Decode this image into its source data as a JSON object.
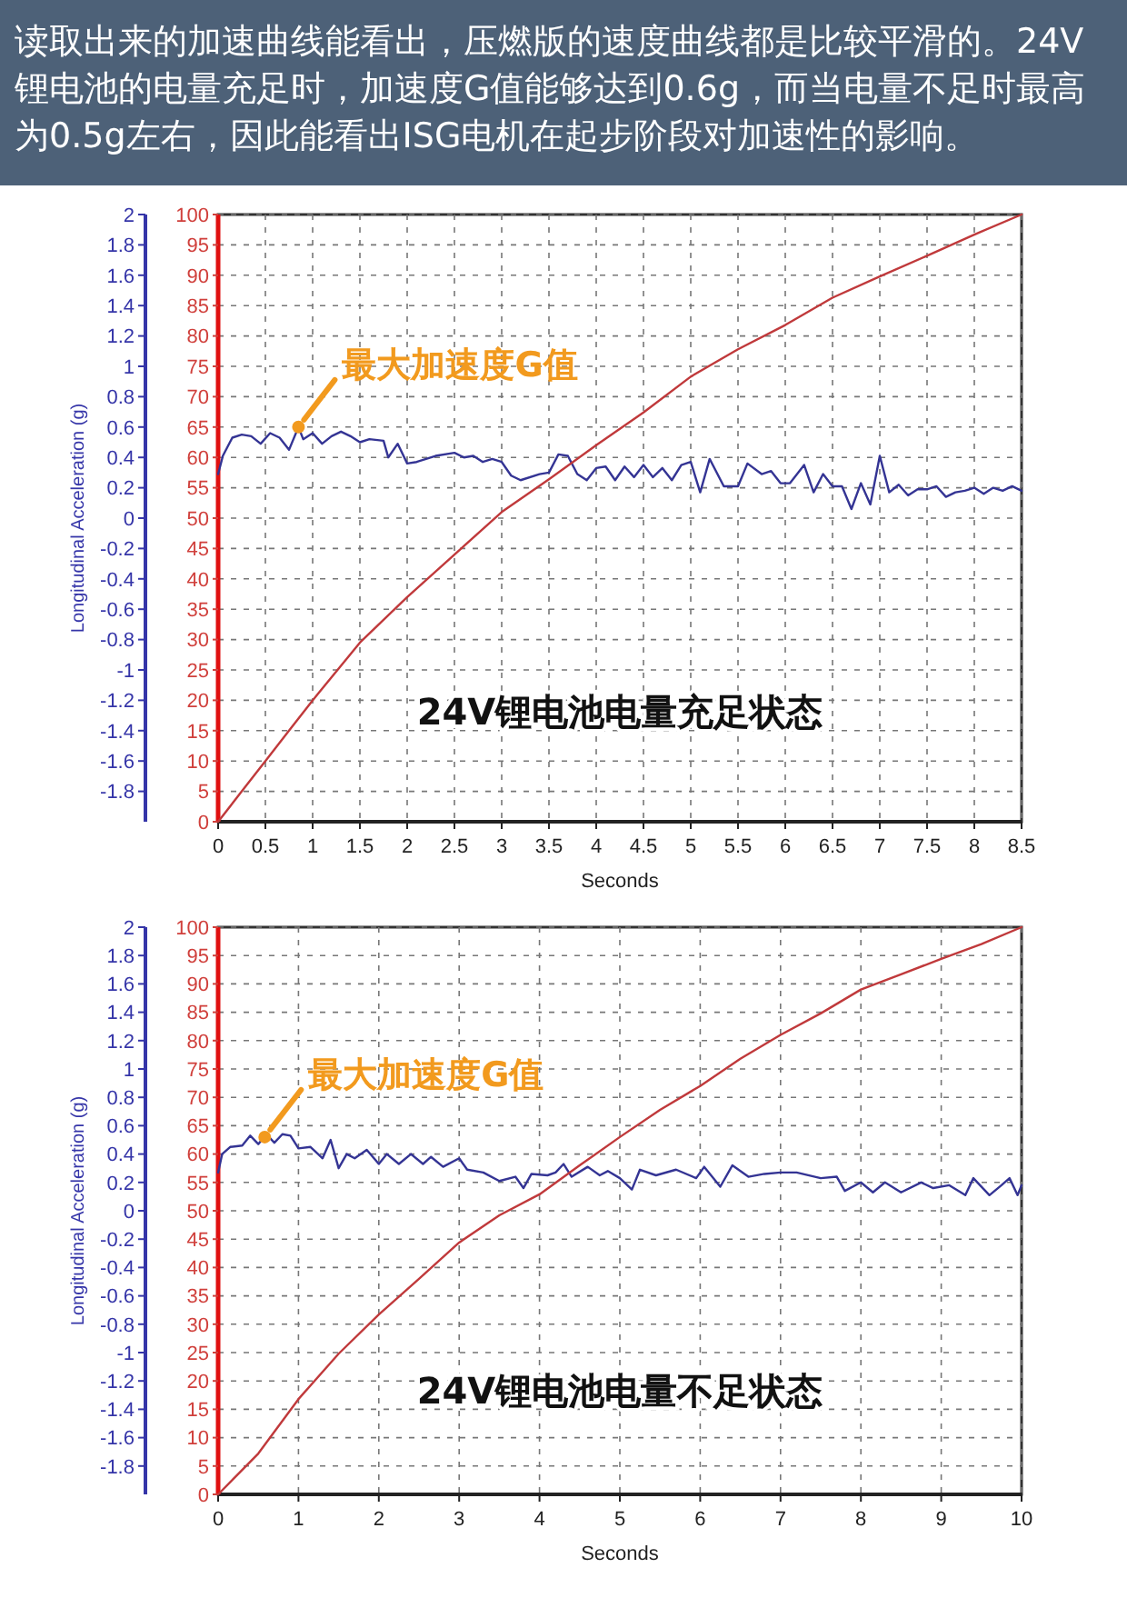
{
  "chart_data": [
    {
      "type": "line",
      "title": "读取出来的加速曲线能看出，压燃版的速度曲线都是比较平滑的。24V锂电池的电量充足时，加速度G值能够达到0.6g，而当电量不足时最高为0.5g左右，因此能看出ISG电机在起步阶段对加速性的影响。",
      "xlabel": "Seconds",
      "ylabel": "Longitudinal Acceleration (g)",
      "xlim": [
        0,
        8.5
      ],
      "xticks": [
        0,
        0.5,
        1,
        1.5,
        2,
        2.5,
        3,
        3.5,
        4,
        4.5,
        5,
        5.5,
        6,
        6.5,
        7,
        7.5,
        8,
        8.5
      ],
      "ylim": [
        -2,
        2
      ],
      "yticks": [
        -1.8,
        -1.6,
        -1.4,
        -1.2,
        -1,
        -0.8,
        -0.6,
        -0.4,
        -0.2,
        0,
        0.2,
        0.4,
        0.6,
        0.8,
        1,
        1.2,
        1.4,
        1.6,
        1.8,
        2
      ],
      "y2lim": [
        0,
        100
      ],
      "y2ticks": [
        0,
        5,
        10,
        15,
        20,
        25,
        30,
        35,
        40,
        45,
        50,
        55,
        60,
        65,
        70,
        75,
        80,
        85,
        90,
        95,
        100
      ],
      "grid": true,
      "series": [
        {
          "color": "#343494",
          "x": [
            0,
            0.05,
            0.15,
            0.25,
            0.35,
            0.45,
            0.55,
            0.65,
            0.75,
            0.85,
            0.9,
            1,
            1.1,
            1.2,
            1.3,
            1.4,
            1.5,
            1.6,
            1.75,
            1.8,
            1.9,
            2,
            2.1,
            2.3,
            2.5,
            2.6,
            2.7,
            2.8,
            2.9,
            3,
            3.1,
            3.2,
            3.4,
            3.5,
            3.6,
            3.7,
            3.8,
            3.9,
            4,
            4.1,
            4.2,
            4.3,
            4.4,
            4.5,
            4.6,
            4.7,
            4.8,
            4.9,
            5,
            5.1,
            5.2,
            5.35,
            5.5,
            5.6,
            5.75,
            5.85,
            5.95,
            6.05,
            6.2,
            6.3,
            6.4,
            6.5,
            6.6,
            6.7,
            6.8,
            6.9,
            7,
            7.1,
            7.2,
            7.3,
            7.4,
            7.5,
            7.6,
            7.7,
            7.8,
            7.9,
            8,
            8.1,
            8.2,
            8.3,
            8.4,
            8.5
          ],
          "values": [
            0.29,
            0.41,
            0.53,
            0.55,
            0.54,
            0.49,
            0.56,
            0.53,
            0.45,
            0.6,
            0.52,
            0.56,
            0.49,
            0.54,
            0.57,
            0.54,
            0.5,
            0.52,
            0.51,
            0.4,
            0.49,
            0.36,
            0.37,
            0.41,
            0.43,
            0.4,
            0.41,
            0.37,
            0.39,
            0.37,
            0.28,
            0.25,
            0.29,
            0.3,
            0.42,
            0.41,
            0.29,
            0.25,
            0.33,
            0.34,
            0.25,
            0.34,
            0.27,
            0.35,
            0.27,
            0.33,
            0.25,
            0.35,
            0.37,
            0.17,
            0.39,
            0.21,
            0.21,
            0.36,
            0.29,
            0.31,
            0.23,
            0.23,
            0.35,
            0.17,
            0.29,
            0.21,
            0.21,
            0.06,
            0.23,
            0.09,
            0.41,
            0.17,
            0.22,
            0.15,
            0.19,
            0.19,
            0.21,
            0.14,
            0.17,
            0.18,
            0.2,
            0.16,
            0.2,
            0.18,
            0.21,
            0.18
          ]
        },
        {
          "color": "#c0393b",
          "axis": "y2",
          "x": [
            0,
            0.25,
            0.5,
            0.75,
            1,
            1.5,
            2,
            2.5,
            3,
            3.5,
            4,
            4.5,
            5,
            5.5,
            6,
            6.5,
            7,
            7.5,
            8,
            8.5
          ],
          "values": [
            0,
            5,
            10,
            15,
            20,
            29.5,
            37,
            44,
            51,
            56.4,
            62,
            67.4,
            73.3,
            77.8,
            81.8,
            86.3,
            89.8,
            93.2,
            96.7,
            100
          ]
        }
      ],
      "annotations": [
        {
          "text": "最大加速度G值",
          "x": 0.85,
          "y": 0.6
        },
        "24V锂电池电量充足状态"
      ]
    },
    {
      "type": "line",
      "xlabel": "Seconds",
      "ylabel": "Longitudinal Acceleration (g)",
      "xlim": [
        0,
        10
      ],
      "xticks": [
        0,
        1,
        2,
        3,
        4,
        5,
        6,
        7,
        8,
        9,
        10
      ],
      "ylim": [
        -2,
        2
      ],
      "yticks": [
        -1.8,
        -1.6,
        -1.4,
        -1.2,
        -1,
        -0.8,
        -0.6,
        -0.4,
        -0.2,
        0,
        0.2,
        0.4,
        0.6,
        0.8,
        1,
        1.2,
        1.4,
        1.6,
        1.8,
        2
      ],
      "y2lim": [
        0,
        100
      ],
      "y2ticks": [
        0,
        5,
        10,
        15,
        20,
        25,
        30,
        35,
        40,
        45,
        50,
        55,
        60,
        65,
        70,
        75,
        80,
        85,
        90,
        95,
        100
      ],
      "grid": true,
      "series": [
        {
          "color": "#343494",
          "x": [
            0,
            0.05,
            0.15,
            0.3,
            0.4,
            0.5,
            0.6,
            0.7,
            0.8,
            0.9,
            1,
            1.15,
            1.3,
            1.4,
            1.5,
            1.6,
            1.7,
            1.85,
            2,
            2.1,
            2.25,
            2.4,
            2.55,
            2.65,
            2.8,
            3,
            3.1,
            3.3,
            3.5,
            3.7,
            3.8,
            3.9,
            4.1,
            4.2,
            4.3,
            4.4,
            4.6,
            4.75,
            4.85,
            5,
            5.15,
            5.25,
            5.45,
            5.7,
            5.95,
            6.05,
            6.25,
            6.4,
            6.6,
            6.8,
            7,
            7.2,
            7.5,
            7.7,
            7.8,
            8,
            8.15,
            8.3,
            8.5,
            8.75,
            8.9,
            9.1,
            9.3,
            9.4,
            9.6,
            9.75,
            9.85,
            9.95,
            10
          ],
          "values": [
            0.27,
            0.4,
            0.45,
            0.46,
            0.53,
            0.47,
            0.54,
            0.48,
            0.54,
            0.53,
            0.44,
            0.45,
            0.37,
            0.5,
            0.3,
            0.4,
            0.37,
            0.43,
            0.33,
            0.4,
            0.33,
            0.4,
            0.33,
            0.38,
            0.31,
            0.37,
            0.29,
            0.27,
            0.21,
            0.24,
            0.16,
            0.26,
            0.25,
            0.27,
            0.33,
            0.24,
            0.31,
            0.25,
            0.28,
            0.23,
            0.15,
            0.29,
            0.25,
            0.29,
            0.23,
            0.31,
            0.17,
            0.32,
            0.24,
            0.26,
            0.27,
            0.27,
            0.23,
            0.24,
            0.14,
            0.2,
            0.13,
            0.2,
            0.13,
            0.2,
            0.16,
            0.18,
            0.11,
            0.23,
            0.11,
            0.18,
            0.23,
            0.11,
            0.18
          ]
        },
        {
          "color": "#c0393b",
          "axis": "y2",
          "x": [
            0,
            0.5,
            1,
            1.5,
            2,
            2.5,
            3,
            3.5,
            4,
            4.5,
            5,
            5.5,
            6,
            6.5,
            7,
            7.5,
            8,
            8.5,
            9,
            9.5,
            10
          ],
          "values": [
            0,
            7.2,
            16.8,
            24.8,
            31.7,
            38,
            44.4,
            49.2,
            52.9,
            58,
            63,
            67.8,
            72,
            76.8,
            81,
            84.8,
            89,
            91.7,
            94.4,
            97,
            100
          ]
        }
      ],
      "annotations": [
        {
          "text": "最大加速度G值",
          "x": 0.58,
          "y": 0.52
        },
        "24V锂电池电量不足状态"
      ]
    }
  ]
}
